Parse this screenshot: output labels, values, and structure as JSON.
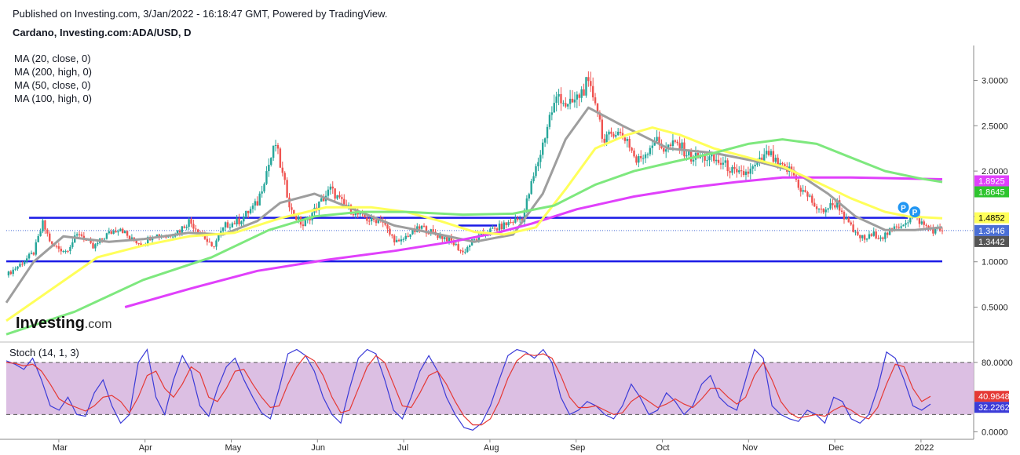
{
  "header": {
    "published": "Published on Investing.com, 3/Jan/2022 - 16:18:47 GMT, Powered by TradingView.",
    "symbol": "Cardano, Investing.com:ADA/USD, D"
  },
  "indicators": {
    "ma_legend": [
      "MA (20, close, 0)",
      "MA (200, high, 0)",
      "MA (50, close, 0)",
      "MA (100, high, 0)"
    ],
    "stoch_title": "Stoch (14, 1, 3)"
  },
  "logo": {
    "main": "Investing",
    "suffix": ".com"
  },
  "colors": {
    "ma20": "#9e9e9e",
    "ma200": "#e040fb",
    "ma50": "#ffff5a",
    "ma100": "#7ee87e",
    "support_lines": "#1a1ae6",
    "bull": "#26a69a",
    "bear": "#ef5350",
    "stoch_k": "#3b3bd8",
    "stoch_d": "#e53935",
    "stoch_band": "#d8b8e0",
    "price_marker": "#4a6fd6",
    "pivot_marker": "#2196f3"
  },
  "chart_data": [
    {
      "type": "candlestick",
      "title": "Cardano, Investing.com:ADA/USD, D",
      "x_ticks": [
        "Mar",
        "Apr",
        "May",
        "Jun",
        "Jul",
        "Aug",
        "Sep",
        "Oct",
        "Nov",
        "Dec",
        "2022"
      ],
      "y_ticks": [
        "3.0000",
        "2.5000",
        "2.0000",
        "1.5000",
        "1.0000",
        "0.5000"
      ],
      "ylim": [
        0.15,
        3.35
      ],
      "close_path": [
        [
          0,
          0.85
        ],
        [
          6,
          0.97
        ],
        [
          12,
          1.1
        ],
        [
          16,
          1.42
        ],
        [
          20,
          1.18
        ],
        [
          26,
          1.12
        ],
        [
          32,
          1.32
        ],
        [
          38,
          1.15
        ],
        [
          44,
          1.3
        ],
        [
          50,
          1.38
        ],
        [
          54,
          1.25
        ],
        [
          60,
          1.2
        ],
        [
          64,
          1.3
        ],
        [
          70,
          1.28
        ],
        [
          76,
          1.35
        ],
        [
          80,
          1.45
        ],
        [
          86,
          1.3
        ],
        [
          90,
          1.15
        ],
        [
          96,
          1.4
        ],
        [
          102,
          1.45
        ],
        [
          110,
          1.65
        ],
        [
          114,
          2.0
        ],
        [
          118,
          2.3
        ],
        [
          121,
          1.95
        ],
        [
          125,
          1.55
        ],
        [
          130,
          1.4
        ],
        [
          136,
          1.6
        ],
        [
          142,
          1.8
        ],
        [
          148,
          1.62
        ],
        [
          154,
          1.52
        ],
        [
          160,
          1.45
        ],
        [
          164,
          1.48
        ],
        [
          168,
          1.3
        ],
        [
          172,
          1.2
        ],
        [
          176,
          1.3
        ],
        [
          182,
          1.38
        ],
        [
          188,
          1.3
        ],
        [
          194,
          1.25
        ],
        [
          200,
          1.1
        ],
        [
          204,
          1.22
        ],
        [
          210,
          1.32
        ],
        [
          216,
          1.38
        ],
        [
          222,
          1.45
        ],
        [
          226,
          1.48
        ],
        [
          230,
          1.85
        ],
        [
          234,
          2.2
        ],
        [
          238,
          2.6
        ],
        [
          242,
          2.85
        ],
        [
          246,
          2.7
        ],
        [
          250,
          2.8
        ],
        [
          254,
          2.95
        ],
        [
          258,
          2.8
        ],
        [
          262,
          2.3
        ],
        [
          266,
          2.45
        ],
        [
          272,
          2.35
        ],
        [
          276,
          2.1
        ],
        [
          280,
          2.2
        ],
        [
          284,
          2.35
        ],
        [
          288,
          2.25
        ],
        [
          294,
          2.3
        ],
        [
          300,
          2.15
        ],
        [
          306,
          2.15
        ],
        [
          312,
          2.1
        ],
        [
          316,
          2.05
        ],
        [
          320,
          1.95
        ],
        [
          326,
          2.0
        ],
        [
          330,
          2.1
        ],
        [
          334,
          2.2
        ],
        [
          338,
          2.05
        ],
        [
          344,
          2.0
        ],
        [
          348,
          1.8
        ],
        [
          352,
          1.7
        ],
        [
          356,
          1.55
        ],
        [
          360,
          1.6
        ],
        [
          364,
          1.65
        ],
        [
          368,
          1.45
        ],
        [
          372,
          1.3
        ],
        [
          376,
          1.25
        ],
        [
          380,
          1.3
        ],
        [
          384,
          1.28
        ],
        [
          390,
          1.38
        ],
        [
          394,
          1.45
        ],
        [
          398,
          1.5
        ],
        [
          402,
          1.4
        ],
        [
          406,
          1.35
        ],
        [
          410,
          1.35
        ]
      ],
      "moving_averages": [
        {
          "name": "MA (20, close, 0)",
          "points": [
            [
              0,
              0.55
            ],
            [
              12,
              1.0
            ],
            [
              25,
              1.28
            ],
            [
              45,
              1.22
            ],
            [
              60,
              1.25
            ],
            [
              80,
              1.32
            ],
            [
              95,
              1.3
            ],
            [
              110,
              1.45
            ],
            [
              120,
              1.65
            ],
            [
              135,
              1.75
            ],
            [
              150,
              1.6
            ],
            [
              170,
              1.4
            ],
            [
              190,
              1.3
            ],
            [
              205,
              1.22
            ],
            [
              222,
              1.3
            ],
            [
              235,
              1.75
            ],
            [
              245,
              2.35
            ],
            [
              255,
              2.7
            ],
            [
              270,
              2.5
            ],
            [
              290,
              2.25
            ],
            [
              310,
              2.2
            ],
            [
              330,
              2.1
            ],
            [
              345,
              2.0
            ],
            [
              360,
              1.75
            ],
            [
              372,
              1.5
            ],
            [
              385,
              1.35
            ],
            [
              398,
              1.35
            ],
            [
              410,
              1.38
            ]
          ]
        },
        {
          "name": "MA (200, high, 0)",
          "points": [
            [
              52,
              0.5
            ],
            [
              80,
              0.7
            ],
            [
              110,
              0.9
            ],
            [
              140,
              1.02
            ],
            [
              170,
              1.12
            ],
            [
              195,
              1.22
            ],
            [
              215,
              1.32
            ],
            [
              230,
              1.42
            ],
            [
              250,
              1.58
            ],
            [
              275,
              1.72
            ],
            [
              300,
              1.82
            ],
            [
              320,
              1.88
            ],
            [
              340,
              1.93
            ],
            [
              370,
              1.93
            ],
            [
              410,
              1.91
            ]
          ]
        },
        {
          "name": "MA (50, close, 0)",
          "points": [
            [
              0,
              0.35
            ],
            [
              20,
              0.7
            ],
            [
              40,
              1.05
            ],
            [
              60,
              1.18
            ],
            [
              80,
              1.28
            ],
            [
              100,
              1.32
            ],
            [
              120,
              1.48
            ],
            [
              140,
              1.6
            ],
            [
              160,
              1.6
            ],
            [
              175,
              1.55
            ],
            [
              190,
              1.45
            ],
            [
              205,
              1.33
            ],
            [
              218,
              1.3
            ],
            [
              232,
              1.38
            ],
            [
              245,
              1.8
            ],
            [
              258,
              2.25
            ],
            [
              272,
              2.4
            ],
            [
              283,
              2.48
            ],
            [
              295,
              2.4
            ],
            [
              310,
              2.25
            ],
            [
              325,
              2.15
            ],
            [
              340,
              2.05
            ],
            [
              355,
              1.88
            ],
            [
              370,
              1.7
            ],
            [
              385,
              1.55
            ],
            [
              395,
              1.5
            ],
            [
              410,
              1.48
            ]
          ]
        },
        {
          "name": "MA (100, high, 0)",
          "points": [
            [
              0,
              0.2
            ],
            [
              30,
              0.45
            ],
            [
              60,
              0.8
            ],
            [
              90,
              1.05
            ],
            [
              115,
              1.35
            ],
            [
              135,
              1.5
            ],
            [
              155,
              1.55
            ],
            [
              175,
              1.55
            ],
            [
              200,
              1.52
            ],
            [
              222,
              1.53
            ],
            [
              240,
              1.62
            ],
            [
              258,
              1.85
            ],
            [
              275,
              2.0
            ],
            [
              292,
              2.1
            ],
            [
              310,
              2.2
            ],
            [
              325,
              2.3
            ],
            [
              340,
              2.35
            ],
            [
              355,
              2.3
            ],
            [
              370,
              2.15
            ],
            [
              385,
              2.0
            ],
            [
              400,
              1.92
            ],
            [
              410,
              1.88
            ]
          ]
        }
      ],
      "horizontal_lines": [
        {
          "level": 1.485,
          "x_from": 10,
          "x_to": 395
        },
        {
          "level": 1.005,
          "x_from": 0,
          "x_to": 410
        },
        {
          "level": 1.4,
          "x_from": 198,
          "x_to": 215
        }
      ],
      "price_labels": [
        {
          "text": "1.8925",
          "value": 1.8925,
          "color": "#e040fb",
          "text_color": "#ffffff"
        },
        {
          "text": "1.8645",
          "value": 1.8645,
          "color": "#2ec42e",
          "text_color": "#ffffff"
        },
        {
          "text": "1.4852",
          "value": 1.4852,
          "color": "#ffff5a",
          "text_color": "#000000"
        },
        {
          "text": "1.3446",
          "value": 1.3446,
          "color": "#4a6fd6",
          "text_color": "#ffffff"
        },
        {
          "text": "1.3442",
          "value": 1.3442,
          "color": "#555555",
          "text_color": "#ffffff"
        }
      ],
      "pivot_markers": [
        {
          "text": "P",
          "x": 393,
          "value": 1.6
        },
        {
          "text": "P",
          "x": 398,
          "value": 1.55
        }
      ]
    },
    {
      "type": "line",
      "title": "Stoch (14, 1, 3)",
      "y_ticks": [
        "80.0000",
        "0.0000"
      ],
      "band": [
        20,
        80
      ],
      "ylim": [
        -5,
        100
      ],
      "series": [
        {
          "name": "%K",
          "values": [
            82,
            78,
            72,
            85,
            60,
            30,
            25,
            40,
            20,
            18,
            45,
            60,
            30,
            10,
            20,
            80,
            95,
            40,
            20,
            60,
            88,
            70,
            30,
            18,
            50,
            75,
            85,
            60,
            40,
            22,
            15,
            50,
            90,
            95,
            88,
            70,
            40,
            20,
            10,
            50,
            85,
            95,
            90,
            60,
            25,
            15,
            40,
            70,
            88,
            70,
            40,
            20,
            5,
            2,
            10,
            30,
            60,
            88,
            95,
            92,
            85,
            95,
            80,
            40,
            20,
            25,
            35,
            30,
            20,
            15,
            30,
            55,
            40,
            20,
            25,
            45,
            35,
            20,
            30,
            55,
            65,
            40,
            30,
            25,
            60,
            95,
            85,
            30,
            20,
            15,
            12,
            25,
            20,
            10,
            40,
            35,
            15,
            10,
            20,
            50,
            92,
            85,
            60,
            30,
            25,
            32
          ]
        },
        {
          "name": "%D",
          "values": [
            80,
            79,
            76,
            78,
            70,
            55,
            38,
            32,
            28,
            24,
            30,
            40,
            42,
            35,
            22,
            40,
            65,
            70,
            50,
            40,
            55,
            75,
            68,
            40,
            35,
            50,
            70,
            72,
            55,
            40,
            28,
            30,
            55,
            75,
            88,
            82,
            65,
            40,
            22,
            25,
            50,
            75,
            88,
            80,
            55,
            30,
            28,
            45,
            65,
            70,
            55,
            35,
            18,
            8,
            8,
            15,
            35,
            62,
            82,
            90,
            88,
            90,
            85,
            65,
            40,
            28,
            28,
            30,
            25,
            20,
            22,
            35,
            42,
            35,
            28,
            32,
            38,
            32,
            28,
            38,
            50,
            50,
            40,
            32,
            40,
            65,
            80,
            60,
            35,
            22,
            16,
            18,
            20,
            18,
            25,
            30,
            25,
            18,
            15,
            28,
            55,
            78,
            75,
            50,
            35,
            41
          ]
        }
      ],
      "price_labels": [
        {
          "text": "40.9648",
          "value": 40.9648,
          "color": "#e53935",
          "text_color": "#ffffff"
        },
        {
          "text": "32.2262",
          "value": 32.2262,
          "color": "#3b3bd8",
          "text_color": "#ffffff"
        }
      ]
    }
  ]
}
